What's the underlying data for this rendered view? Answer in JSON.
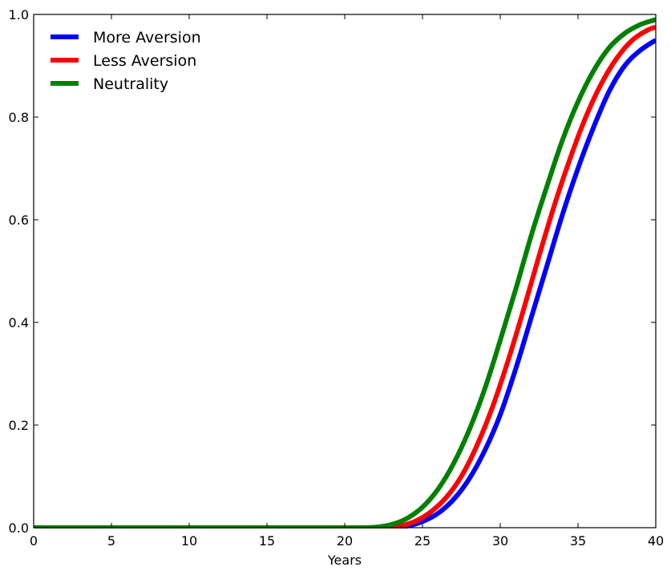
{
  "chart_data": {
    "type": "line",
    "title": "",
    "xlabel": "Years",
    "ylabel": "",
    "xlim": [
      0,
      40
    ],
    "ylim": [
      0.0,
      1.0
    ],
    "xticks": [
      "0",
      "5",
      "10",
      "15",
      "20",
      "25",
      "30",
      "35",
      "40"
    ],
    "yticks": [
      "0.0",
      "0.2",
      "0.4",
      "0.6",
      "0.8",
      "1.0"
    ],
    "grid": false,
    "legend": "top-left",
    "series": [
      {
        "name": "More Aversion",
        "color": "#0000ff",
        "x": [
          0,
          5,
          10,
          15,
          20,
          22,
          23,
          24,
          25,
          26,
          27,
          28,
          29,
          30,
          31,
          32,
          33,
          34,
          35,
          36,
          37,
          38,
          39,
          40
        ],
        "y": [
          0,
          0,
          0,
          0,
          0,
          0,
          0,
          0.003,
          0.012,
          0.028,
          0.055,
          0.095,
          0.15,
          0.22,
          0.31,
          0.41,
          0.51,
          0.61,
          0.7,
          0.78,
          0.85,
          0.9,
          0.93,
          0.95
        ]
      },
      {
        "name": "Less Aversion",
        "color": "#ff0000",
        "x": [
          0,
          5,
          10,
          15,
          20,
          21.5,
          22.5,
          23.5,
          24.5,
          25.5,
          26.5,
          27.5,
          28.5,
          29.5,
          30.5,
          31.5,
          32.5,
          33.5,
          34.5,
          35.5,
          36.5,
          37.5,
          38.5,
          39.5,
          40
        ],
        "y": [
          0,
          0,
          0,
          0,
          0,
          0,
          0,
          0.003,
          0.012,
          0.03,
          0.058,
          0.1,
          0.16,
          0.235,
          0.325,
          0.425,
          0.53,
          0.63,
          0.72,
          0.8,
          0.865,
          0.915,
          0.95,
          0.97,
          0.975
        ]
      },
      {
        "name": "Neutrality",
        "color": "#008000",
        "x": [
          0,
          5,
          10,
          15,
          20,
          21,
          22,
          23,
          24,
          25,
          26,
          27,
          28,
          29,
          30,
          31,
          32,
          33,
          34,
          35,
          36,
          37,
          38,
          39,
          40
        ],
        "y": [
          0,
          0,
          0,
          0,
          0,
          0,
          0.001,
          0.006,
          0.018,
          0.04,
          0.075,
          0.125,
          0.19,
          0.27,
          0.365,
          0.465,
          0.57,
          0.665,
          0.755,
          0.83,
          0.89,
          0.935,
          0.963,
          0.98,
          0.99
        ]
      }
    ]
  }
}
